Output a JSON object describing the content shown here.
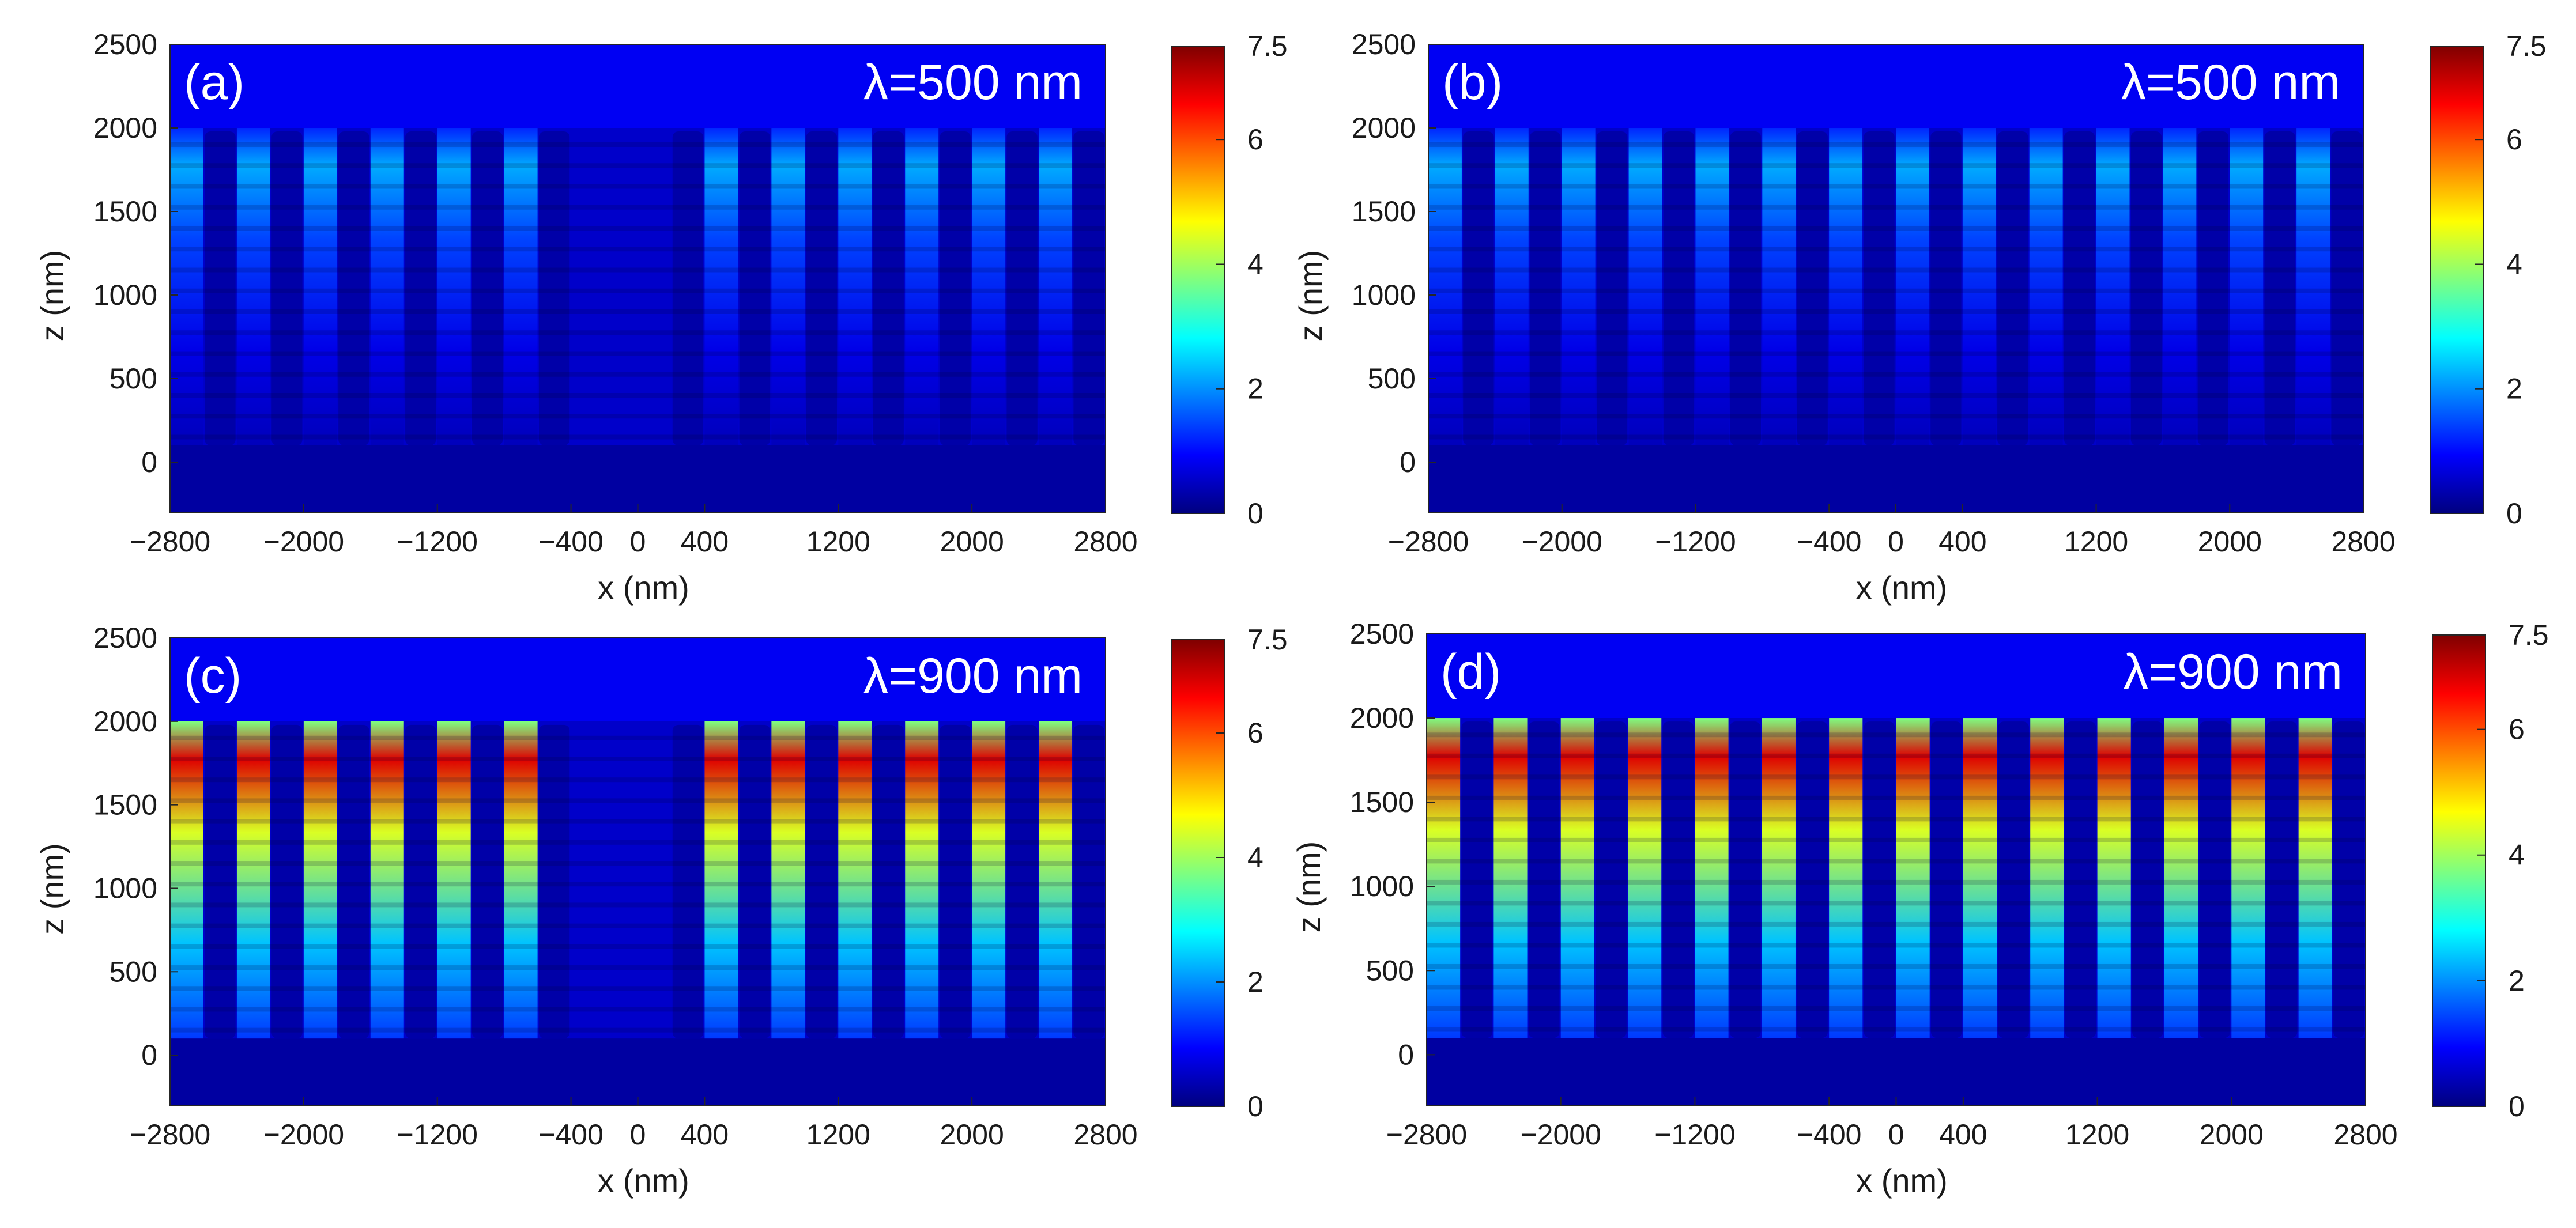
{
  "figure": {
    "colormap": [
      "#00007f",
      "#0000ff",
      "#007fff",
      "#00ffff",
      "#7fff7f",
      "#ffff00",
      "#ff7f00",
      "#ff0000",
      "#7f0000"
    ]
  },
  "chart_data": [
    {
      "type": "heatmap",
      "panel": "(a)",
      "annotation": "λ=500 nm",
      "xlabel": "x (nm)",
      "ylabel": "z (nm)",
      "xlim": [
        -2800,
        2800
      ],
      "ylim": [
        -300,
        2500
      ],
      "xticks": [
        -2800,
        -2000,
        -1200,
        -400,
        0,
        400,
        1200,
        2000,
        2800
      ],
      "xtick_labels": [
        "−2800",
        "−2000",
        "−1200",
        "−400",
        "0",
        "400",
        "1200",
        "2000",
        "2800"
      ],
      "yticks": [
        0,
        500,
        1000,
        1500,
        2000,
        2500
      ],
      "ytick_labels": [
        "0",
        "500",
        "1000",
        "1500",
        "2000",
        "2500"
      ],
      "colorbar": {
        "min": 0,
        "max": 7.5,
        "ticks": [
          0,
          2,
          4,
          6,
          7.5
        ],
        "tick_labels": [
          "0",
          "2",
          "4",
          "6",
          "7.5"
        ]
      },
      "rod_centers_nm": [
        -2500,
        -2100,
        -1700,
        -1300,
        -900,
        -500,
        300,
        700,
        1100,
        1500,
        1900,
        2300,
        2700
      ],
      "rod_width_nm": 200,
      "rod_top_nm": 2000,
      "rod_bottom_nm": 100,
      "gap_centers_nm": [
        -2700,
        -2300,
        -1900,
        -1500,
        -1100,
        -700,
        500,
        900,
        1300,
        1700,
        2100,
        2500
      ],
      "missing_region_nm": [
        -300,
        200
      ],
      "peak_field": 2.2
    },
    {
      "type": "heatmap",
      "panel": "(b)",
      "annotation": "λ=500 nm",
      "xlabel": "x (nm)",
      "ylabel": "z (nm)",
      "xlim": [
        -2800,
        2800
      ],
      "ylim": [
        -300,
        2500
      ],
      "xticks": [
        -2800,
        -2000,
        -1200,
        -400,
        0,
        400,
        1200,
        2000,
        2800
      ],
      "xtick_labels": [
        "−2800",
        "−2000",
        "−1200",
        "−400",
        "0",
        "400",
        "1200",
        "2000",
        "2800"
      ],
      "yticks": [
        0,
        500,
        1000,
        1500,
        2000,
        2500
      ],
      "ytick_labels": [
        "0",
        "500",
        "1000",
        "1500",
        "2000",
        "2500"
      ],
      "colorbar": {
        "min": 0,
        "max": 7.5,
        "ticks": [
          0,
          2,
          4,
          6,
          7.5
        ],
        "tick_labels": [
          "0",
          "2",
          "4",
          "6",
          "7.5"
        ]
      },
      "rod_centers_nm": [
        -2500,
        -2100,
        -1700,
        -1300,
        -900,
        -500,
        -100,
        300,
        700,
        1100,
        1500,
        1900,
        2300,
        2700
      ],
      "rod_width_nm": 200,
      "rod_top_nm": 2000,
      "rod_bottom_nm": 100,
      "gap_centers_nm": [
        -2700,
        -2300,
        -1900,
        -1500,
        -1100,
        -700,
        -300,
        100,
        500,
        900,
        1300,
        1700,
        2100,
        2500
      ],
      "peak_field": 2.2
    },
    {
      "type": "heatmap",
      "panel": "(c)",
      "annotation": "λ=900 nm",
      "xlabel": "x (nm)",
      "ylabel": "z (nm)",
      "xlim": [
        -2800,
        2800
      ],
      "ylim": [
        -300,
        2500
      ],
      "xticks": [
        -2800,
        -2000,
        -1200,
        -400,
        0,
        400,
        1200,
        2000,
        2800
      ],
      "xtick_labels": [
        "−2800",
        "−2000",
        "−1200",
        "−400",
        "0",
        "400",
        "1200",
        "2000",
        "2800"
      ],
      "yticks": [
        0,
        500,
        1000,
        1500,
        2000,
        2500
      ],
      "ytick_labels": [
        "0",
        "500",
        "1000",
        "1500",
        "2000",
        "2500"
      ],
      "colorbar": {
        "min": 0,
        "max": 7.5,
        "ticks": [
          0,
          2,
          4,
          6,
          7.5
        ],
        "tick_labels": [
          "0",
          "2",
          "4",
          "6",
          "7.5"
        ]
      },
      "rod_centers_nm": [
        -2500,
        -2100,
        -1700,
        -1300,
        -900,
        -500,
        300,
        700,
        1100,
        1500,
        1900,
        2300,
        2700
      ],
      "rod_width_nm": 200,
      "rod_top_nm": 2000,
      "rod_bottom_nm": 100,
      "gap_centers_nm": [
        -2700,
        -2300,
        -1900,
        -1500,
        -1100,
        -700,
        500,
        900,
        1300,
        1700,
        2100,
        2500
      ],
      "missing_region_nm": [
        -300,
        200
      ],
      "peak_field": 6.8
    },
    {
      "type": "heatmap",
      "panel": "(d)",
      "annotation": "λ=900 nm",
      "xlabel": "x (nm)",
      "ylabel": "z (nm)",
      "xlim": [
        -2800,
        2800
      ],
      "ylim": [
        -300,
        2500
      ],
      "xticks": [
        -2800,
        -2000,
        -1200,
        -400,
        0,
        400,
        1200,
        2000,
        2800
      ],
      "xtick_labels": [
        "−2800",
        "−2000",
        "−1200",
        "−400",
        "0",
        "400",
        "1200",
        "2000",
        "2800"
      ],
      "yticks": [
        0,
        500,
        1000,
        1500,
        2000,
        2500
      ],
      "ytick_labels": [
        "0",
        "500",
        "1000",
        "1500",
        "2000",
        "2500"
      ],
      "colorbar": {
        "min": 0,
        "max": 7.5,
        "ticks": [
          0,
          2,
          4,
          6,
          7.5
        ],
        "tick_labels": [
          "0",
          "2",
          "4",
          "6",
          "7.5"
        ]
      },
      "rod_centers_nm": [
        -2500,
        -2100,
        -1700,
        -1300,
        -900,
        -500,
        -100,
        300,
        700,
        1100,
        1500,
        1900,
        2300,
        2700
      ],
      "rod_width_nm": 200,
      "rod_top_nm": 2000,
      "rod_bottom_nm": 100,
      "gap_centers_nm": [
        -2700,
        -2300,
        -1900,
        -1500,
        -1100,
        -700,
        -300,
        100,
        500,
        900,
        1300,
        1700,
        2100,
        2500
      ],
      "peak_field": 6.8
    }
  ]
}
